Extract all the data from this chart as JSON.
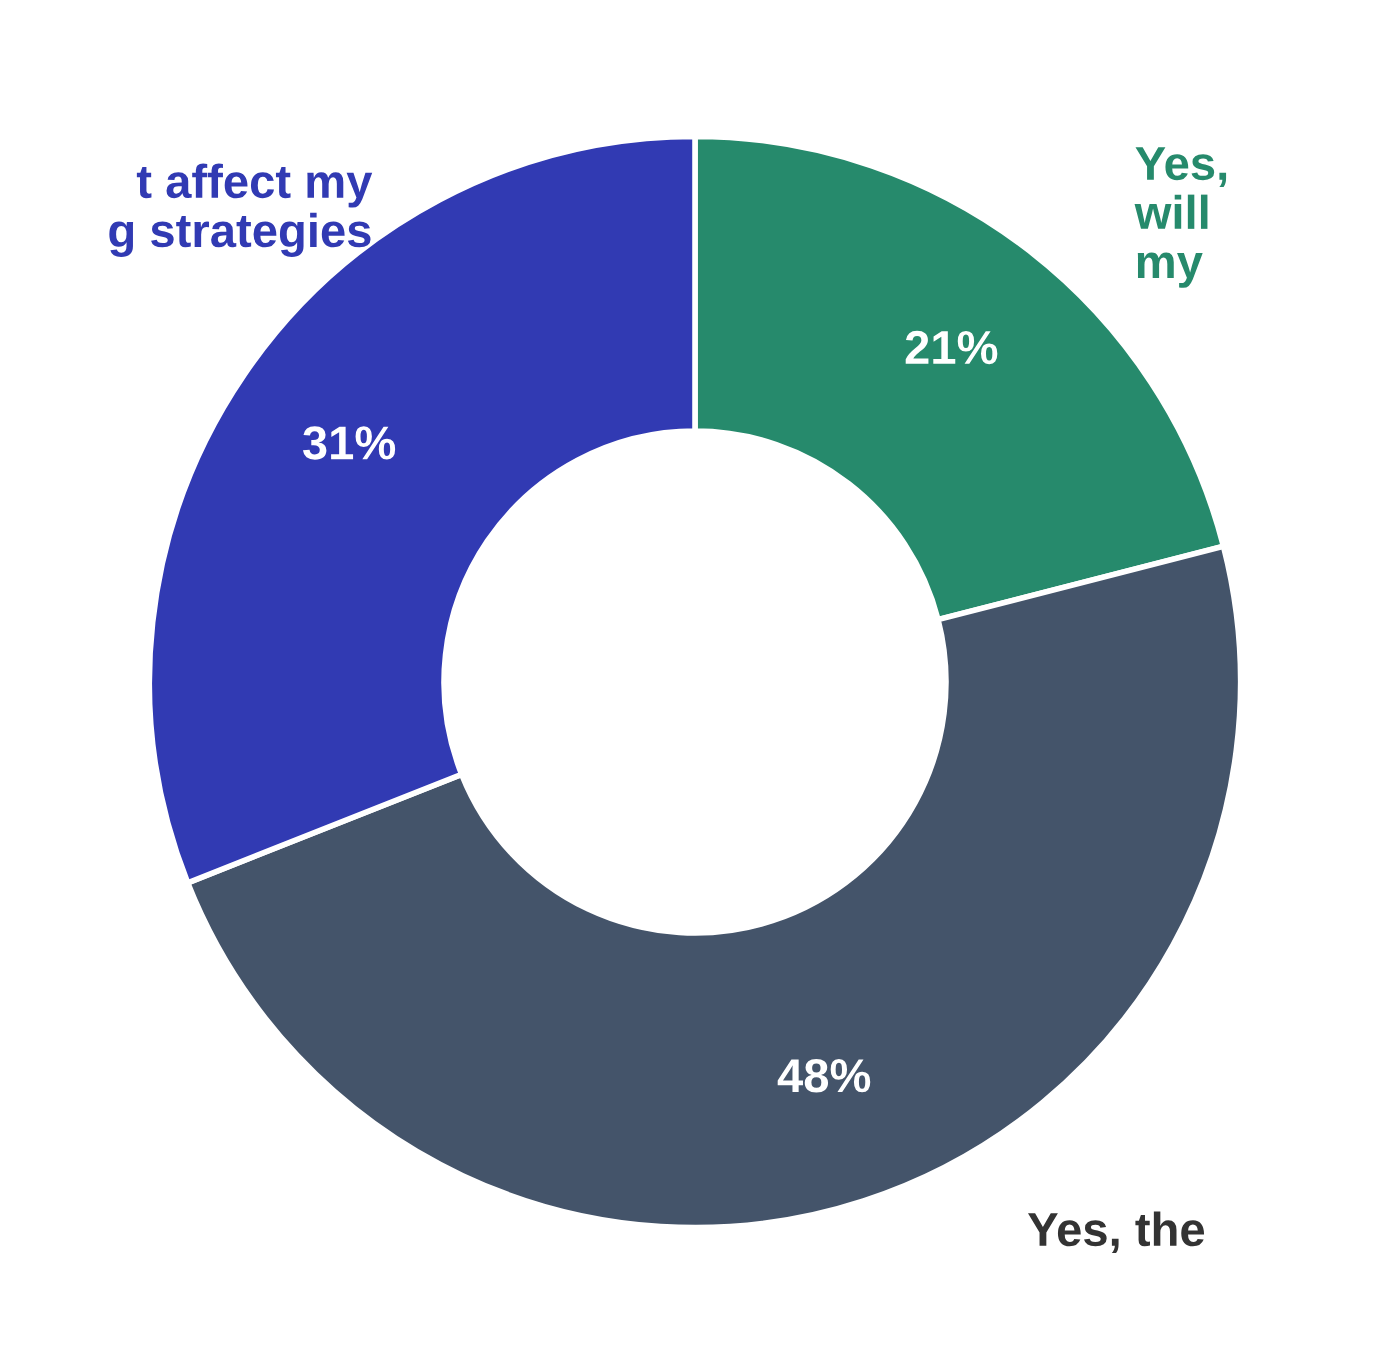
{
  "chart_data": {
    "type": "donut",
    "categories": [
      "Yes,\nwill\nmy",
      "Yes, the",
      "t affect my\ng strategies"
    ],
    "values": [
      21,
      48,
      31
    ],
    "colors": [
      "#268a6c",
      "#44546a",
      "#313ab3"
    ],
    "value_labels": [
      "21%",
      "48%",
      "31%"
    ],
    "legend": false
  }
}
